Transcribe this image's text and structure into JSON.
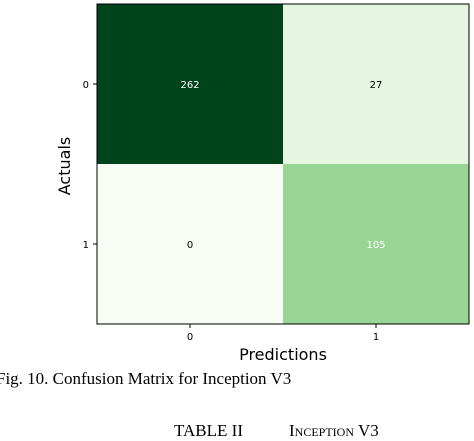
{
  "chart_data": {
    "type": "heatmap",
    "xlabel": "Predictions",
    "ylabel": "Actuals",
    "x_categories": [
      "0",
      "1"
    ],
    "y_categories": [
      "0",
      "1"
    ],
    "values": [
      [
        262,
        27
      ],
      [
        0,
        105
      ]
    ],
    "colormap": "Greens",
    "colors": {
      "cell_0_0": "#00441b",
      "cell_0_1": "#e5f5e0",
      "cell_1_0": "#f7fcf5",
      "cell_1_1": "#98d594",
      "text_dark": "#000000",
      "text_light": "#ffffff"
    }
  },
  "caption": "Fig. 10. Confusion Matrix for Inception V3",
  "table_heading": {
    "label": "TABLE II",
    "title_initial": "I",
    "title_rest": "NCEPTION",
    "title_suffix": " V3"
  }
}
